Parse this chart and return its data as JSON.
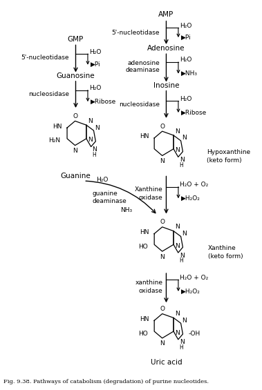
{
  "title": "Fig. 9.38. Pathways of catabolism (degradation) of purine nucleotides.",
  "bg_color": "#ffffff",
  "figsize": [
    3.79,
    5.65
  ],
  "dpi": 100,
  "xlim": [
    0,
    379
  ],
  "ylim": [
    0,
    565
  ]
}
